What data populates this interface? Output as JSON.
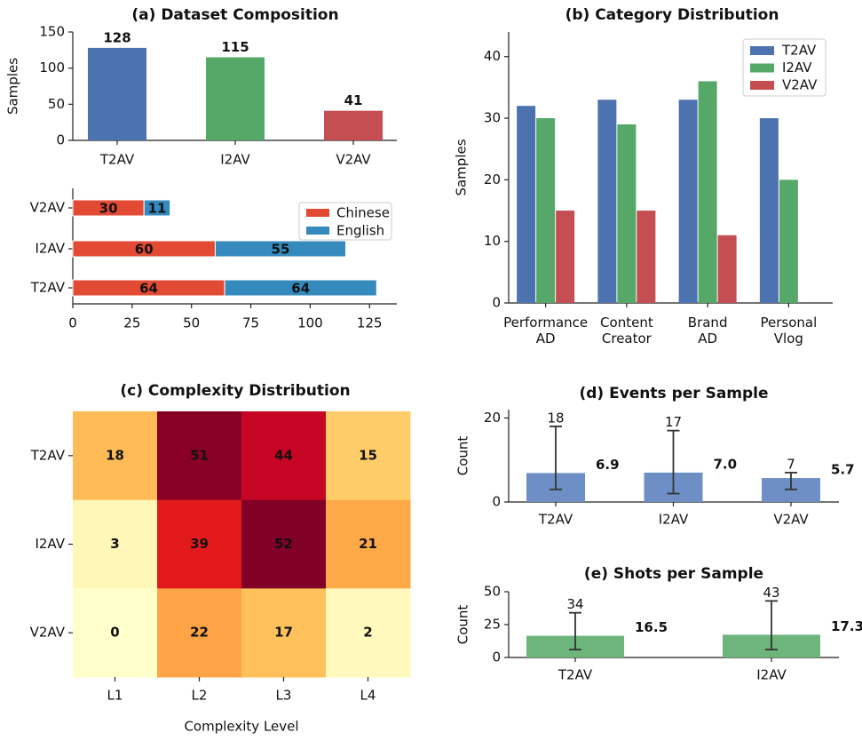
{
  "chart_data": [
    {
      "type": "bar",
      "title": "(a) Dataset Composition",
      "ylabel": "Samples",
      "categories": [
        "T2AV",
        "I2AV",
        "V2AV"
      ],
      "values": [
        128,
        115,
        41
      ],
      "colors": [
        "#4c72b0",
        "#55a868",
        "#c44e52"
      ],
      "ylim": [
        0,
        150
      ],
      "yticks": [
        0,
        50,
        100,
        150
      ]
    },
    {
      "type": "hbar_stacked",
      "categories": [
        "T2AV",
        "I2AV",
        "V2AV"
      ],
      "series": [
        {
          "name": "Chinese",
          "color": "#e24a33",
          "values": [
            64,
            60,
            30
          ]
        },
        {
          "name": "English",
          "color": "#348abd",
          "values": [
            64,
            55,
            11
          ]
        }
      ],
      "xlim": [
        0,
        136.5
      ],
      "xticks": [
        0,
        25,
        50,
        75,
        100,
        125
      ],
      "legend": "upper right"
    },
    {
      "type": "grouped_bar",
      "title": "(b) Category Distribution",
      "ylabel": "Samples",
      "categories": [
        "Performance\nAD",
        "Content\nCreator",
        "Brand\nAD",
        "Personal\nVlog"
      ],
      "series": [
        {
          "name": "T2AV",
          "color": "#4c72b0",
          "values": [
            32,
            33,
            33,
            30
          ]
        },
        {
          "name": "I2AV",
          "color": "#55a868",
          "values": [
            30,
            29,
            36,
            20
          ]
        },
        {
          "name": "V2AV",
          "color": "#c44e52",
          "values": [
            15,
            15,
            11,
            0
          ]
        }
      ],
      "ylim": [
        0,
        44
      ],
      "yticks": [
        0,
        10,
        20,
        30,
        40
      ],
      "legend": "upper right"
    },
    {
      "type": "heatmap",
      "title": "(c) Complexity Distribution",
      "xlabel": "Complexity Level",
      "x": [
        "L1",
        "L2",
        "L3",
        "L4"
      ],
      "y": [
        "T2AV",
        "I2AV",
        "V2AV"
      ],
      "values": [
        [
          18,
          51,
          44,
          15
        ],
        [
          3,
          39,
          52,
          21
        ],
        [
          0,
          22,
          17,
          2
        ]
      ],
      "cmap": "YlOrRd",
      "vmin": 0,
      "vmax": 52
    },
    {
      "type": "error_bar",
      "title": "(d) Events per Sample",
      "ylabel": "Count",
      "categories": [
        "T2AV",
        "I2AV",
        "V2AV"
      ],
      "values": [
        6.9,
        7.0,
        5.7
      ],
      "value_labels": [
        "6.9",
        "7.0",
        "5.7"
      ],
      "min": [
        3,
        2,
        3
      ],
      "max": [
        18,
        17,
        7
      ],
      "color": "#6d8fc6",
      "label_color": "#4c72b0",
      "ylim": [
        0,
        22
      ],
      "yticks": [
        0,
        20
      ]
    },
    {
      "type": "error_bar",
      "title": "(e) Shots per Sample",
      "ylabel": "Count",
      "categories": [
        "T2AV",
        "I2AV"
      ],
      "values": [
        16.5,
        17.3
      ],
      "value_labels": [
        "16.5",
        "17.3"
      ],
      "min": [
        6,
        6
      ],
      "max": [
        34,
        43
      ],
      "color": "#6db57b",
      "label_color": "#55a868",
      "ylim": [
        0,
        50
      ],
      "yticks": [
        0,
        25,
        50
      ]
    }
  ]
}
